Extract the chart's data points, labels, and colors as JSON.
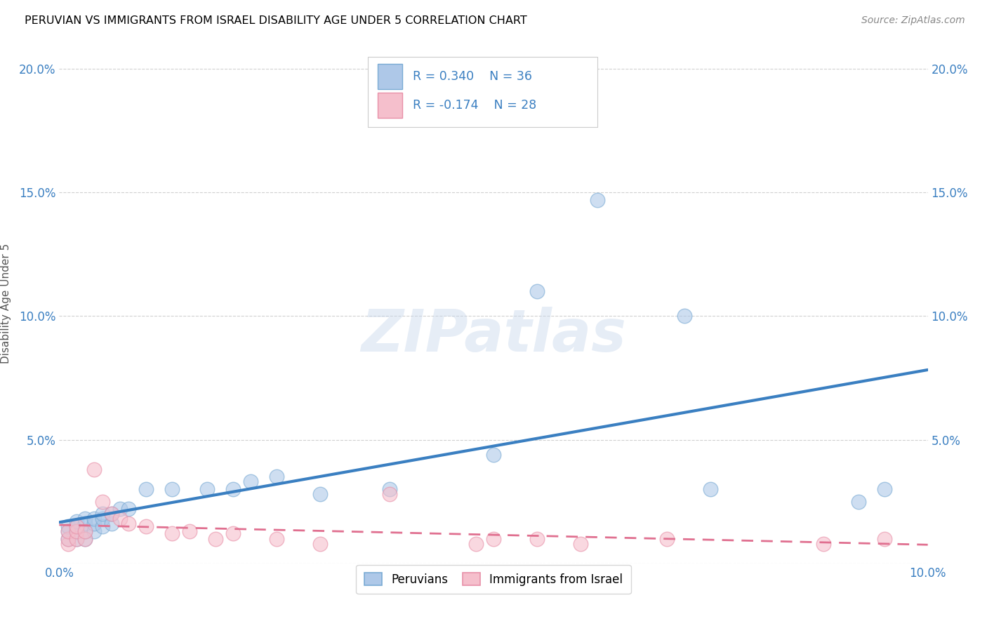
{
  "title": "PERUVIAN VS IMMIGRANTS FROM ISRAEL DISABILITY AGE UNDER 5 CORRELATION CHART",
  "source": "Source: ZipAtlas.com",
  "ylabel": "Disability Age Under 5",
  "xlim": [
    0.0,
    0.1
  ],
  "ylim": [
    0.0,
    0.21
  ],
  "yticks": [
    0.0,
    0.05,
    0.1,
    0.15,
    0.2
  ],
  "ytick_labels": [
    "",
    "5.0%",
    "10.0%",
    "15.0%",
    "20.0%"
  ],
  "xticks": [
    0.0,
    0.02,
    0.04,
    0.06,
    0.08,
    0.1
  ],
  "xtick_labels": [
    "0.0%",
    "",
    "",
    "",
    "",
    "10.0%"
  ],
  "blue_R": 0.34,
  "blue_N": 36,
  "pink_R": -0.174,
  "pink_N": 28,
  "blue_color": "#aec8e8",
  "blue_edge_color": "#7aabd4",
  "blue_line_color": "#3a7fc1",
  "pink_color": "#f5bfcc",
  "pink_edge_color": "#e890a8",
  "pink_line_color": "#e07090",
  "background_color": "#ffffff",
  "grid_color": "#d0d0d0",
  "watermark": "ZIPatlas",
  "legend_text_color": "#3a7fc1",
  "blue_points_x": [
    0.001,
    0.001,
    0.001,
    0.002,
    0.002,
    0.002,
    0.002,
    0.003,
    0.003,
    0.003,
    0.003,
    0.004,
    0.004,
    0.004,
    0.005,
    0.005,
    0.005,
    0.006,
    0.006,
    0.007,
    0.008,
    0.01,
    0.013,
    0.017,
    0.02,
    0.022,
    0.025,
    0.03,
    0.038,
    0.05,
    0.055,
    0.062,
    0.072,
    0.075,
    0.092,
    0.095
  ],
  "blue_points_y": [
    0.01,
    0.013,
    0.015,
    0.01,
    0.013,
    0.015,
    0.017,
    0.01,
    0.013,
    0.016,
    0.018,
    0.013,
    0.016,
    0.018,
    0.015,
    0.018,
    0.02,
    0.016,
    0.02,
    0.022,
    0.022,
    0.03,
    0.03,
    0.03,
    0.03,
    0.033,
    0.035,
    0.028,
    0.03,
    0.044,
    0.11,
    0.147,
    0.1,
    0.03,
    0.025,
    0.03
  ],
  "pink_points_x": [
    0.001,
    0.001,
    0.001,
    0.002,
    0.002,
    0.002,
    0.003,
    0.003,
    0.004,
    0.005,
    0.006,
    0.007,
    0.008,
    0.01,
    0.013,
    0.015,
    0.018,
    0.02,
    0.025,
    0.03,
    0.038,
    0.048,
    0.05,
    0.055,
    0.06,
    0.07,
    0.088,
    0.095
  ],
  "pink_points_y": [
    0.008,
    0.01,
    0.013,
    0.01,
    0.013,
    0.015,
    0.01,
    0.013,
    0.038,
    0.025,
    0.02,
    0.018,
    0.016,
    0.015,
    0.012,
    0.013,
    0.01,
    0.012,
    0.01,
    0.008,
    0.028,
    0.008,
    0.01,
    0.01,
    0.008,
    0.01,
    0.008,
    0.01
  ]
}
